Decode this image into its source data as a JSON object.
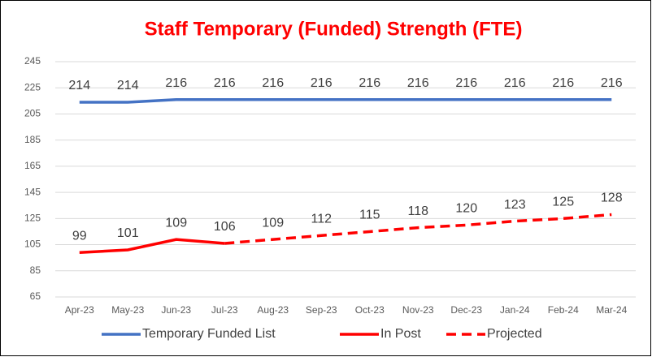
{
  "chart_data": {
    "type": "line",
    "title": "Staff Temporary (Funded) Strength (FTE)",
    "categories": [
      "Apr-23",
      "May-23",
      "Jun-23",
      "Jul-23",
      "Aug-23",
      "Sep-23",
      "Oct-23",
      "Nov-23",
      "Dec-23",
      "Jan-24",
      "Feb-24",
      "Mar-24"
    ],
    "series": [
      {
        "name": "Temporary Funded List",
        "color": "#4472c4",
        "values": [
          214,
          214,
          216,
          216,
          216,
          216,
          216,
          216,
          216,
          216,
          216,
          216
        ]
      },
      {
        "name": "In Post",
        "color": "#ff0000",
        "values": [
          99,
          101,
          109,
          106,
          null,
          null,
          null,
          null,
          null,
          null,
          null,
          null
        ]
      },
      {
        "name": "Projected",
        "color": "#ff0000",
        "dashed": true,
        "values": [
          null,
          null,
          null,
          106,
          109,
          112,
          115,
          118,
          120,
          123,
          125,
          128
        ]
      }
    ],
    "ylim": [
      65,
      245
    ],
    "yticks": [
      65,
      85,
      105,
      125,
      145,
      165,
      185,
      205,
      225,
      245
    ],
    "grid": true,
    "legend": "bottom"
  }
}
